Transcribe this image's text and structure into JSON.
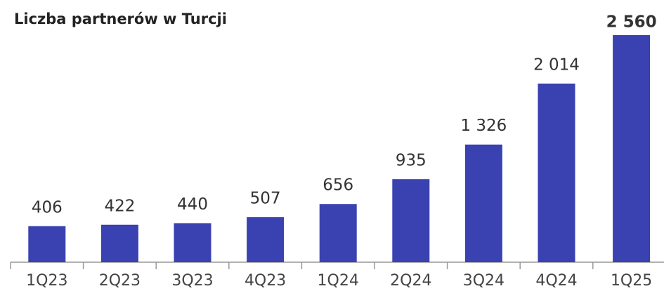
{
  "chart_data": {
    "type": "bar",
    "title": "Liczba partnerów w Turcji",
    "categories": [
      "1Q23",
      "2Q23",
      "3Q23",
      "4Q23",
      "1Q24",
      "2Q24",
      "3Q24",
      "4Q24",
      "1Q25"
    ],
    "values": [
      406,
      422,
      440,
      507,
      656,
      935,
      1326,
      2014,
      2560
    ],
    "value_labels": [
      "406",
      "422",
      "440",
      "507",
      "656",
      "935",
      "1 326",
      "2 014",
      "2 560"
    ],
    "color": "#3a41b0"
  }
}
